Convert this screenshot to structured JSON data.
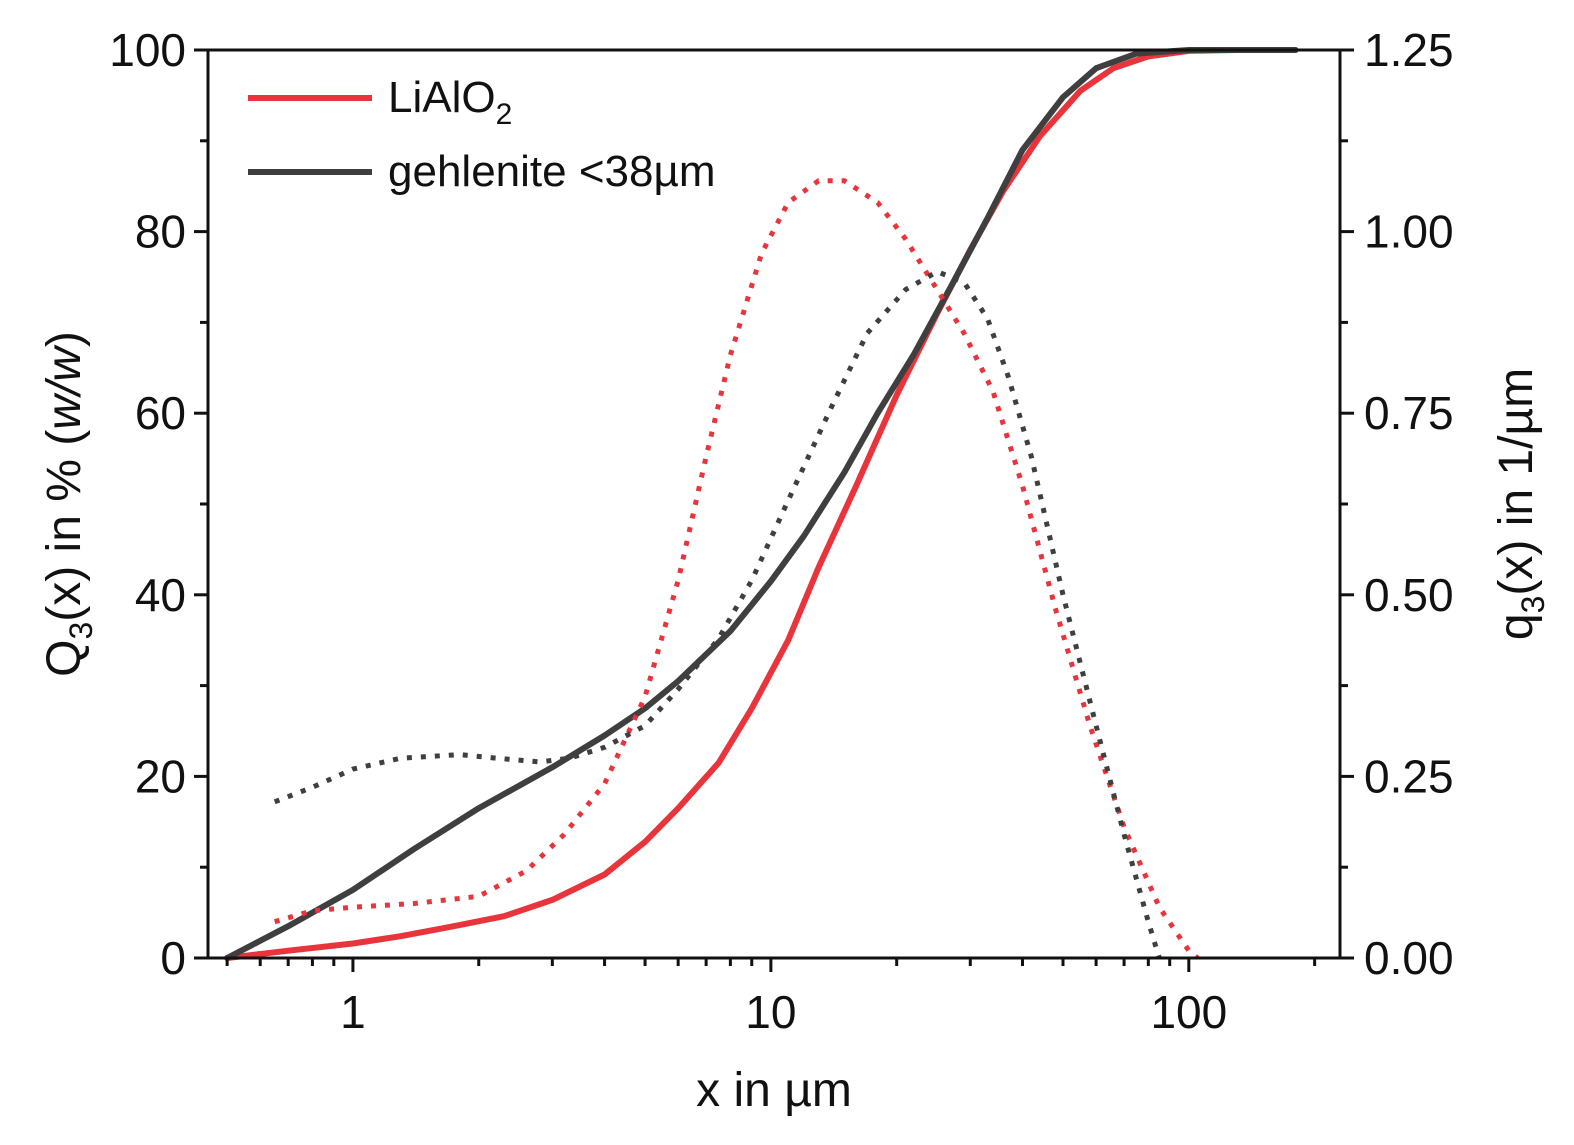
{
  "chart_data": {
    "type": "line",
    "x_scale": "log",
    "xlabel": "x in µm",
    "ylabel": {
      "base": "Q",
      "sub": "3",
      "rest": "(x) in % (",
      "italic": "w/w",
      "close": ")"
    },
    "y2label": {
      "base": "q",
      "sub": "3",
      "rest": "(x) in 1/µm"
    },
    "xlim": [
      0.45,
      230
    ],
    "ylim": [
      0,
      100
    ],
    "y2lim": [
      0,
      1.25
    ],
    "x_ticks": [
      1,
      10,
      100
    ],
    "x_tick_labels": [
      "1",
      "10",
      "100"
    ],
    "y_ticks": [
      0,
      20,
      40,
      60,
      80,
      100
    ],
    "y_tick_labels": [
      "0",
      "20",
      "40",
      "60",
      "80",
      "100"
    ],
    "y2_ticks": [
      0,
      0.25,
      0.5,
      0.75,
      1.0,
      1.25
    ],
    "y2_tick_labels": [
      "0.00",
      "0.25",
      "0.50",
      "0.75",
      "1.00",
      "1.25"
    ],
    "legend": [
      {
        "name": "LiAlO",
        "sub": "2",
        "color": "#e8343a"
      },
      {
        "name": "gehlenite <38µm",
        "sub": "",
        "color": "#3f3f3f"
      }
    ],
    "series": [
      {
        "name": "LiAlO2 Q3",
        "axis": "left",
        "style": "solid",
        "color": "#e8343a",
        "x": [
          0.5,
          0.7,
          1.0,
          1.3,
          1.7,
          2.3,
          3.0,
          4.0,
          5.0,
          6.0,
          7.5,
          9.0,
          11.0,
          13.0,
          16.0,
          20.0,
          25.0,
          30.0,
          36.0,
          44.0,
          55.0,
          66.0,
          80.0,
          100.0,
          130.0,
          180.0
        ],
        "y": [
          0,
          0.8,
          1.6,
          2.4,
          3.4,
          4.6,
          6.4,
          9.2,
          12.8,
          16.5,
          21.5,
          27.5,
          35,
          43,
          52,
          62,
          71,
          78,
          84.5,
          90.5,
          95.5,
          98,
          99.3,
          99.9,
          100,
          100
        ]
      },
      {
        "name": "gehlenite Q3",
        "axis": "left",
        "style": "solid",
        "color": "#3f3f3f",
        "x": [
          0.5,
          0.7,
          1.0,
          1.4,
          2.0,
          3.0,
          4.0,
          5.0,
          6.0,
          8.0,
          10.0,
          12.0,
          15.0,
          18.0,
          22.0,
          27.0,
          33.0,
          40.0,
          50.0,
          60.0,
          75.0,
          100.0,
          130.0,
          180.0
        ],
        "y": [
          0,
          3.5,
          7.5,
          12,
          16.5,
          21,
          24.5,
          27.5,
          30.5,
          36,
          41.5,
          46.5,
          53.5,
          60,
          66.5,
          74,
          81.5,
          89,
          94.8,
          98,
          99.6,
          100,
          100,
          100
        ]
      },
      {
        "name": "LiAlO2 q3",
        "axis": "right",
        "style": "dotted",
        "color": "#e8343a",
        "x": [
          0.65,
          0.8,
          1.0,
          1.4,
          2.0,
          2.6,
          3.2,
          4.0,
          5.0,
          6.0,
          7.0,
          8.0,
          9.5,
          11.0,
          13.0,
          15.0,
          18.0,
          21.0,
          25.0,
          29.0,
          34.0,
          40.0,
          48.0,
          58.0,
          70.0,
          85.0,
          100.0,
          105.0
        ],
        "y": [
          0.05,
          0.065,
          0.07,
          0.075,
          0.085,
          0.12,
          0.17,
          0.24,
          0.36,
          0.52,
          0.69,
          0.83,
          0.97,
          1.04,
          1.07,
          1.07,
          1.04,
          0.99,
          0.92,
          0.86,
          0.78,
          0.65,
          0.48,
          0.32,
          0.18,
          0.07,
          0.01,
          0.0
        ]
      },
      {
        "name": "gehlenite q3",
        "axis": "right",
        "style": "dotted",
        "color": "#3f3f3f",
        "x": [
          0.65,
          0.8,
          1.0,
          1.3,
          1.8,
          2.2,
          2.8,
          3.3,
          4.0,
          5.0,
          6.0,
          7.5,
          9.0,
          11.0,
          14.0,
          17.0,
          21.0,
          25.0,
          29.0,
          33.0,
          37.0,
          42.0,
          50.0,
          60.0,
          70.0,
          80.0,
          85.0
        ],
        "y": [
          0.215,
          0.235,
          0.26,
          0.275,
          0.28,
          0.275,
          0.27,
          0.275,
          0.29,
          0.32,
          0.37,
          0.44,
          0.52,
          0.63,
          0.76,
          0.86,
          0.92,
          0.945,
          0.93,
          0.88,
          0.8,
          0.69,
          0.5,
          0.32,
          0.17,
          0.05,
          0.0
        ]
      }
    ]
  }
}
